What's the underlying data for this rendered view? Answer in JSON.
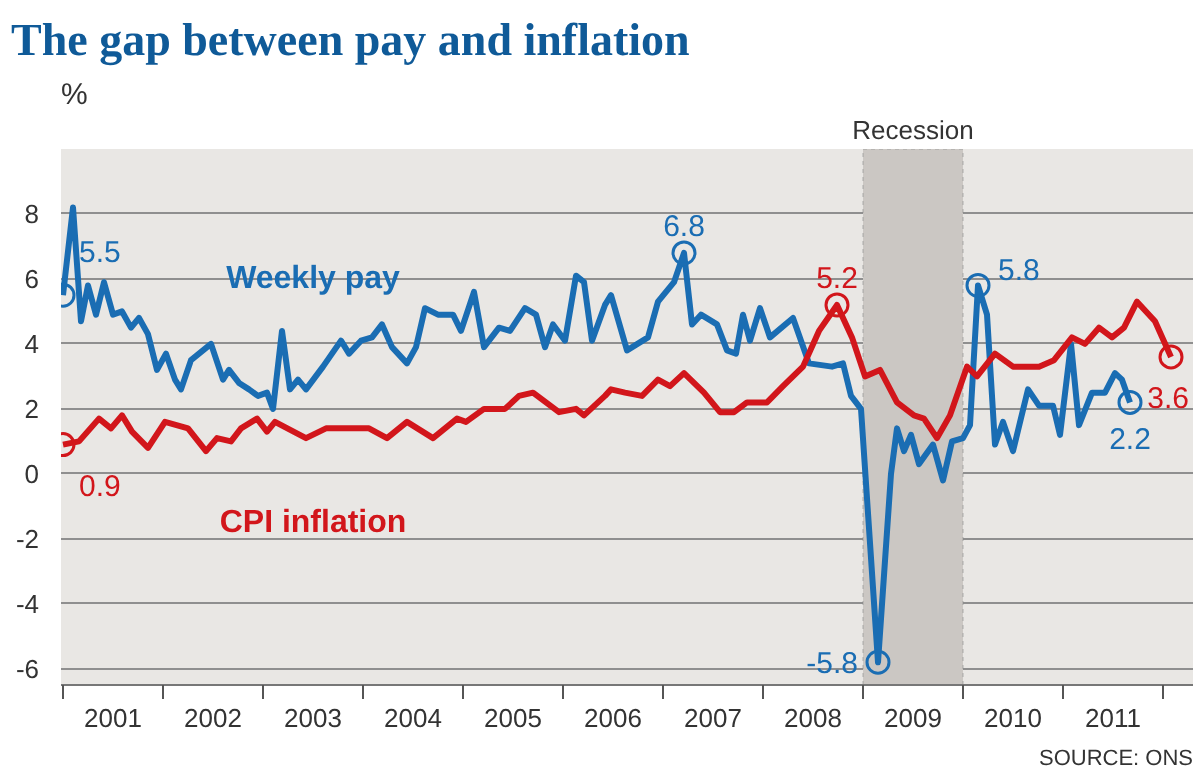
{
  "chart_data": {
    "type": "line",
    "title": "The gap between pay and inflation",
    "ylabel": "%",
    "xlim": [
      2000.98,
      2012.3
    ],
    "ylim": [
      -6.5,
      10
    ],
    "yticks": [
      -6,
      -4,
      -2,
      0,
      2,
      4,
      6,
      8
    ],
    "xticks": [
      {
        "value": 2001,
        "label": null
      },
      {
        "value": 2001.5,
        "label": "2001"
      },
      {
        "value": 2002,
        "label": null
      },
      {
        "value": 2002.5,
        "label": "2002"
      },
      {
        "value": 2003,
        "label": null
      },
      {
        "value": 2003.5,
        "label": "2003"
      },
      {
        "value": 2004,
        "label": null
      },
      {
        "value": 2004.5,
        "label": "2004"
      },
      {
        "value": 2005,
        "label": null
      },
      {
        "value": 2005.5,
        "label": "2005"
      },
      {
        "value": 2006,
        "label": null
      },
      {
        "value": 2006.5,
        "label": "2006"
      },
      {
        "value": 2007,
        "label": null
      },
      {
        "value": 2007.5,
        "label": "2007"
      },
      {
        "value": 2008,
        "label": null
      },
      {
        "value": 2008.5,
        "label": "2008"
      },
      {
        "value": 2009,
        "label": null
      },
      {
        "value": 2009.5,
        "label": "2009"
      },
      {
        "value": 2010,
        "label": null
      },
      {
        "value": 2010.5,
        "label": "2010"
      },
      {
        "value": 2011,
        "label": null
      },
      {
        "value": 2011.5,
        "label": "2011"
      },
      {
        "value": 2012,
        "label": null
      }
    ],
    "grid": "y",
    "marker": "none",
    "line_style": "solid",
    "legend": false,
    "series": [
      {
        "name": "Weekly pay",
        "color": "#1a6db3",
        "x": [
          2001.0,
          2001.1,
          2001.18,
          2001.25,
          2001.33,
          2001.41,
          2001.5,
          2001.59,
          2001.68,
          2001.76,
          2001.85,
          2001.94,
          2002.03,
          2002.12,
          2002.18,
          2002.28,
          2002.48,
          2002.6,
          2002.66,
          2002.76,
          2002.86,
          2002.95,
          2003.04,
          2003.1,
          2003.19,
          2003.27,
          2003.35,
          2003.43,
          2003.6,
          2003.78,
          2003.86,
          2003.98,
          2004.09,
          2004.19,
          2004.29,
          2004.44,
          2004.53,
          2004.62,
          2004.75,
          2004.9,
          2004.98,
          2005.11,
          2005.21,
          2005.36,
          2005.47,
          2005.62,
          2005.73,
          2005.82,
          2005.9,
          2006.02,
          2006.13,
          2006.21,
          2006.29,
          2006.42,
          2006.48,
          2006.64,
          2006.85,
          2006.95,
          2007.11,
          2007.21,
          2007.29,
          2007.38,
          2007.54,
          2007.64,
          2007.73,
          2007.8,
          2007.87,
          2007.97,
          2008.07,
          2008.3,
          2008.46,
          2008.69,
          2008.8,
          2008.88,
          2008.98,
          2009.15,
          2009.28,
          2009.34,
          2009.41,
          2009.48,
          2009.56,
          2009.7,
          2009.8,
          2009.89,
          2010.0,
          2010.07,
          2010.15,
          2010.24,
          2010.32,
          2010.4,
          2010.5,
          2010.65,
          2010.76,
          2010.9,
          2010.97,
          2011.08,
          2011.16,
          2011.29,
          2011.42,
          2011.52,
          2011.59,
          2011.67
        ],
        "values": [
          5.5,
          8.2,
          4.7,
          5.8,
          4.9,
          5.9,
          4.9,
          5.0,
          4.5,
          4.8,
          4.3,
          3.2,
          3.7,
          2.9,
          2.6,
          3.5,
          4.0,
          2.9,
          3.2,
          2.8,
          2.6,
          2.4,
          2.5,
          2.0,
          4.4,
          2.6,
          2.9,
          2.6,
          3.3,
          4.1,
          3.7,
          4.1,
          4.2,
          4.6,
          3.9,
          3.4,
          3.9,
          5.1,
          4.9,
          4.9,
          4.4,
          5.6,
          3.9,
          4.5,
          4.4,
          5.1,
          4.9,
          3.9,
          4.6,
          4.1,
          6.1,
          5.9,
          4.1,
          5.2,
          5.5,
          3.8,
          4.2,
          5.3,
          5.9,
          6.8,
          4.6,
          4.9,
          4.6,
          3.8,
          3.7,
          4.9,
          4.1,
          5.1,
          4.2,
          4.8,
          3.4,
          3.3,
          3.4,
          2.4,
          2.0,
          -5.8,
          0.0,
          1.4,
          0.7,
          1.2,
          0.3,
          0.9,
          -0.2,
          1.0,
          1.1,
          1.5,
          5.8,
          4.9,
          0.9,
          1.6,
          0.7,
          2.6,
          2.1,
          2.1,
          1.2,
          4.0,
          1.5,
          2.5,
          2.5,
          3.1,
          2.9,
          2.2
        ]
      },
      {
        "name": "CPI inflation",
        "color": "#d2161b",
        "x": [
          2001.0,
          2001.16,
          2001.36,
          2001.48,
          2001.59,
          2001.69,
          2001.85,
          2002.02,
          2002.25,
          2002.43,
          2002.54,
          2002.68,
          2002.78,
          2002.94,
          2003.04,
          2003.12,
          2003.43,
          2003.63,
          2003.79,
          2004.06,
          2004.24,
          2004.44,
          2004.7,
          2004.94,
          2005.03,
          2005.21,
          2005.42,
          2005.56,
          2005.7,
          2005.96,
          2006.13,
          2006.21,
          2006.42,
          2006.48,
          2006.62,
          2006.79,
          2006.95,
          2007.07,
          2007.21,
          2007.41,
          2007.57,
          2007.71,
          2007.84,
          2008.04,
          2008.2,
          2008.4,
          2008.56,
          2008.74,
          2008.89,
          2009.02,
          2009.17,
          2009.34,
          2009.51,
          2009.61,
          2009.74,
          2009.87,
          2010.04,
          2010.14,
          2010.32,
          2010.5,
          2010.76,
          2010.91,
          2011.09,
          2011.22,
          2011.36,
          2011.49,
          2011.61,
          2011.74,
          2011.92,
          2012.08
        ],
        "values": [
          0.9,
          1.0,
          1.7,
          1.4,
          1.8,
          1.3,
          0.8,
          1.6,
          1.4,
          0.7,
          1.1,
          1.0,
          1.4,
          1.7,
          1.3,
          1.6,
          1.1,
          1.4,
          1.4,
          1.4,
          1.1,
          1.6,
          1.1,
          1.7,
          1.6,
          2.0,
          2.0,
          2.4,
          2.5,
          1.9,
          2.0,
          1.8,
          2.4,
          2.6,
          2.5,
          2.4,
          2.9,
          2.7,
          3.1,
          2.5,
          1.9,
          1.9,
          2.2,
          2.2,
          2.7,
          3.3,
          4.4,
          5.2,
          4.2,
          3.0,
          3.2,
          2.2,
          1.8,
          1.7,
          1.1,
          1.8,
          3.3,
          3.0,
          3.7,
          3.3,
          3.3,
          3.5,
          4.2,
          4.0,
          4.5,
          4.2,
          4.5,
          5.3,
          4.7,
          3.6
        ]
      }
    ],
    "bands": [
      {
        "axis": "x",
        "from": 2009,
        "to": 2010,
        "label": "Recession",
        "color": "#cbc7c3"
      }
    ],
    "annotations": [
      {
        "text": "5.5",
        "x": 2001.0,
        "y": 5.5
      },
      {
        "text": "0.9",
        "x": 2001.0,
        "y": 0.9
      },
      {
        "text": "6.8",
        "x": 2007.21,
        "y": 6.8
      },
      {
        "text": "5.2",
        "x": 2008.74,
        "y": 5.2
      },
      {
        "text": "-5.8",
        "x": 2009.15,
        "y": -5.8
      },
      {
        "text": "5.8",
        "x": 2010.15,
        "y": 5.8
      },
      {
        "text": "2.2",
        "x": 2011.67,
        "y": 2.2
      },
      {
        "text": "3.6",
        "x": 2012.08,
        "y": 3.6
      },
      "SOURCE: ONS"
    ]
  }
}
